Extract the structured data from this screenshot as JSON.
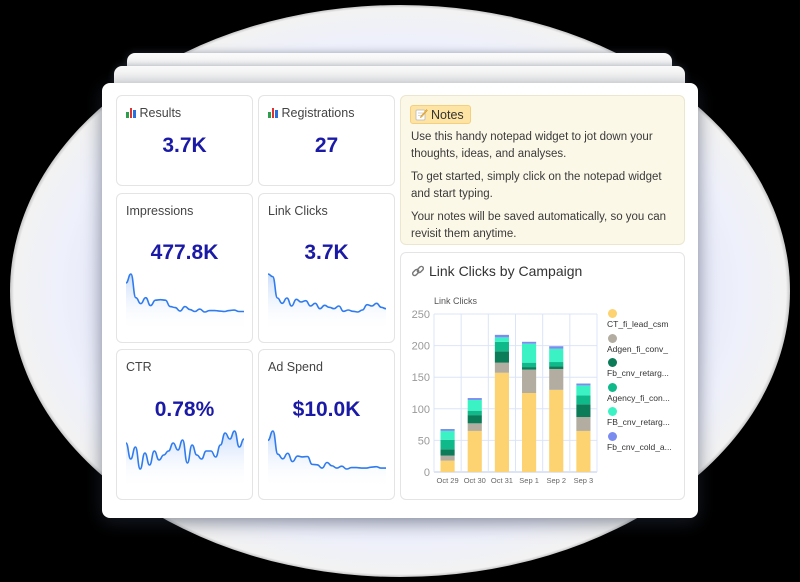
{
  "kpis": {
    "results": {
      "label": "Results",
      "value": "3.7K",
      "icon": "bar-chart-icon"
    },
    "registrations": {
      "label": "Registrations",
      "value": "27",
      "icon": "bar-chart-icon"
    },
    "impressions": {
      "label": "Impressions",
      "value": "477.8K"
    },
    "link_clicks": {
      "label": "Link Clicks",
      "value": "3.7K"
    },
    "ctr": {
      "label": "CTR",
      "value": "0.78%"
    },
    "ad_spend": {
      "label": "Ad Spend",
      "value": "$10.0K"
    }
  },
  "sparklines": {
    "impressions": [
      60,
      78,
      30,
      18,
      30,
      14,
      25,
      26,
      25,
      12,
      10,
      3,
      12,
      6,
      2,
      7,
      1,
      4,
      4,
      3,
      2,
      4,
      5,
      2,
      2
    ],
    "link_clicks": [
      58,
      54,
      22,
      14,
      22,
      10,
      20,
      16,
      18,
      10,
      14,
      6,
      11,
      8,
      6,
      10,
      2,
      4,
      2,
      1,
      4,
      12,
      10,
      14,
      8,
      6
    ],
    "ctr": [
      52,
      36,
      48,
      26,
      42,
      30,
      44,
      35,
      40,
      44,
      52,
      45,
      55,
      32,
      50,
      40,
      36,
      44,
      44,
      38,
      50,
      62,
      56,
      64,
      48,
      56
    ],
    "ad_spend": [
      62,
      82,
      32,
      22,
      34,
      16,
      28,
      26,
      27,
      10,
      9,
      2,
      14,
      7,
      2,
      6,
      0,
      3,
      3,
      2,
      2,
      4,
      5,
      2,
      2
    ]
  },
  "notes": {
    "tag": "Notes",
    "icon": "memo-icon",
    "paragraphs": [
      "Use this handy notepad widget to jot down your thoughts, ideas, and analyses.",
      "To get started, simply click on the notepad widget and start typing.",
      "Your notes will be saved automatically, so you can revisit them anytime."
    ]
  },
  "chart_card": {
    "title": "Link Clicks by Campaign",
    "icon": "link-icon"
  },
  "chart_data": {
    "type": "bar",
    "stacked": true,
    "title": "Link Clicks by Campaign",
    "ylabel": "Link Clicks",
    "xlabel": "",
    "ylim": [
      0,
      250
    ],
    "yticks": [
      0,
      50,
      100,
      150,
      200,
      250
    ],
    "grid": true,
    "legend_position": "right",
    "categories": [
      "Oct 29",
      "Oct 30",
      "Oct 31",
      "Sep 1",
      "Sep 2",
      "Sep 3"
    ],
    "series": [
      {
        "name": "CT_fi_lead_csm",
        "color": "#fdd270",
        "values": [
          18,
          65,
          157,
          125,
          130,
          65
        ]
      },
      {
        "name": "Adgen_fi_conv_",
        "color": "#b2aca1",
        "values": [
          8,
          12,
          16,
          37,
          33,
          22
        ]
      },
      {
        "name": "Fb_cnv_retarg...",
        "color": "#0b7b58",
        "values": [
          10,
          13,
          18,
          4,
          4,
          20
        ]
      },
      {
        "name": "Agency_fi_con...",
        "color": "#10b98a",
        "values": [
          15,
          7,
          15,
          7,
          7,
          14
        ]
      },
      {
        "name": "FB_cnv_retarg...",
        "color": "#3af2c4",
        "values": [
          14,
          17,
          7,
          30,
          21,
          16
        ]
      },
      {
        "name": "Fb_cnv_cold_a...",
        "color": "#7b8cf0",
        "values": [
          3,
          3,
          4,
          3,
          4,
          3
        ]
      }
    ]
  }
}
